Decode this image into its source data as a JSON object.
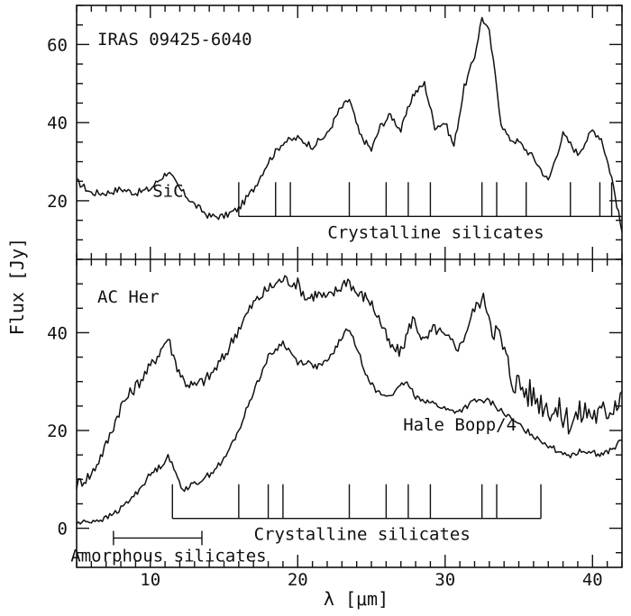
{
  "chart_data": {
    "type": "line",
    "xlabel": "λ [μm]",
    "ylabel": "Flux [Jy]",
    "xlim": [
      5,
      42
    ],
    "xticks": [
      10,
      20,
      30,
      40
    ],
    "panels": [
      {
        "id": "top",
        "ylim": [
          5,
          70
        ],
        "yticks": [
          20,
          40,
          60
        ],
        "label": "IRAS 09425-6040",
        "series": [
          {
            "name": "",
            "x": [
              5.0,
              6.0,
              7.0,
              8.0,
              9.0,
              10.0,
              10.5,
              11.2,
              12.0,
              13.0,
              14.0,
              15.0,
              16.0,
              17.0,
              18.0,
              19.0,
              20.0,
              21.0,
              22.0,
              22.8,
              23.5,
              24.2,
              25.0,
              25.6,
              26.3,
              27.0,
              27.8,
              28.6,
              29.3,
              30.0,
              30.6,
              31.3,
              32.0,
              32.5,
              33.0,
              33.4,
              33.8,
              34.3,
              35.0,
              36.0,
              37.0,
              38.0,
              39.0,
              40.0,
              40.6,
              41.3,
              42.0
            ],
            "y": [
              25,
              22,
              22,
              23,
              22,
              23,
              25,
              27.5,
              23,
              19,
              16,
              16,
              18,
              23,
              30,
              35,
              36,
              34,
              37,
              43,
              46,
              37,
              33,
              39,
              42,
              38,
              47,
              50,
              39,
              40,
              34,
              49,
              57,
              67,
              63,
              52,
              40,
              36,
              35,
              31,
              25,
              37,
              32,
              38,
              36,
              26,
              12
            ]
          }
        ],
        "annotations": [
          {
            "text": "SiC",
            "x": 11.2,
            "y": 21
          },
          {
            "text": "Crystalline silicates",
            "x_start": 16.0,
            "x_end": 42.0,
            "y": 16,
            "ticks": [
              16.0,
              18.5,
              19.5,
              23.5,
              26.0,
              27.5,
              29.0,
              32.5,
              33.5,
              35.5,
              38.5,
              40.5,
              41.3
            ]
          }
        ]
      },
      {
        "id": "bottom",
        "ylim": [
          -8,
          55
        ],
        "yticks": [
          0,
          20,
          40
        ],
        "label": "AC Her",
        "series": [
          {
            "name": "",
            "x": [
              5.0,
              6.0,
              7.0,
              8.0,
              9.0,
              10.0,
              10.6,
              11.2,
              11.7,
              12.3,
              13.0,
              14.0,
              15.0,
              16.0,
              17.0,
              18.0,
              19.0,
              20.0,
              20.6,
              21.3,
              22.0,
              22.8,
              23.4,
              24.0,
              24.8,
              25.5,
              26.3,
              27.0,
              27.8,
              28.6,
              29.3,
              30.0,
              31.0,
              32.0,
              32.6,
              33.2,
              33.8,
              34.5,
              35.5,
              36.5,
              37.5,
              38.5,
              39.5,
              40.5,
              41.3,
              42.0
            ],
            "y": [
              9,
              11,
              17,
              25,
              29,
              33,
              36,
              39,
              34,
              30,
              29,
              31,
              35,
              41,
              46,
              49,
              51,
              50,
              47,
              48,
              47,
              49,
              51,
              48,
              47,
              43,
              37,
              36,
              43,
              38,
              41,
              39,
              37,
              45,
              47,
              42,
              38,
              31,
              28,
              26,
              24,
              22,
              24,
              23,
              25,
              28
            ]
          },
          {
            "name": "Hale Bopp/4",
            "x": [
              5.0,
              6.0,
              7.0,
              8.0,
              9.0,
              10.0,
              10.8,
              11.2,
              11.6,
              12.2,
              13.0,
              14.0,
              15.0,
              16.0,
              17.0,
              18.0,
              19.0,
              20.0,
              20.6,
              21.3,
              22.0,
              22.8,
              23.4,
              24.0,
              24.6,
              25.3,
              26.0,
              26.7,
              27.3,
              28.0,
              28.8,
              29.6,
              30.3,
              31.0,
              32.0,
              33.0,
              33.8,
              34.6,
              35.5,
              36.5,
              37.5,
              38.5,
              39.5,
              40.5,
              41.3,
              42.0
            ],
            "y": [
              1,
              1.5,
              2,
              4,
              7,
              11,
              13,
              15,
              12,
              8,
              9,
              11,
              14,
              20,
              28,
              35,
              38,
              34,
              34,
              33,
              34,
              38,
              41,
              37,
              32,
              28,
              27,
              28,
              30,
              27,
              26,
              25,
              24,
              24,
              26,
              26,
              24,
              22,
              20,
              18,
              16,
              15,
              16,
              15,
              16,
              18
            ]
          }
        ],
        "annotations": [
          {
            "text": "Hale Bopp/4",
            "x": 31.0,
            "y": 20
          },
          {
            "text": "Crystalline silicates",
            "x_start": 11.5,
            "x_end": 36.5,
            "y": 2,
            "ticks": [
              11.5,
              16.0,
              18.0,
              19.0,
              23.5,
              26.0,
              27.5,
              29.0,
              32.5,
              33.5,
              36.5
            ]
          },
          {
            "text": "Amorphous silicates",
            "x_start": 7.5,
            "x_end": 13.5,
            "y": -2
          }
        ]
      }
    ]
  }
}
